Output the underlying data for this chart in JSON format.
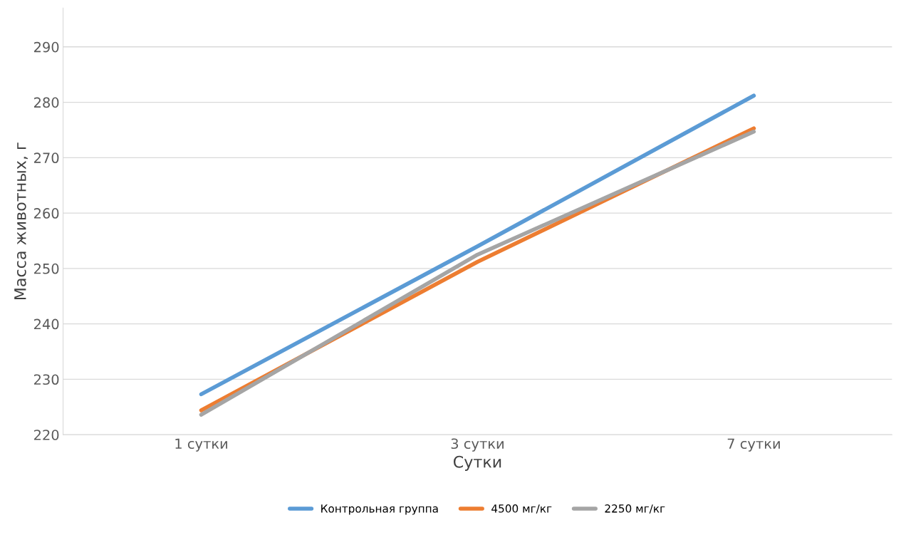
{
  "chart_data": {
    "type": "line",
    "xlabel": "Сутки",
    "ylabel": "Масса животных, г",
    "categories": [
      "1 сутки",
      "3 сутки",
      "7 сутки"
    ],
    "series": [
      {
        "name": "Контрольная группа",
        "color": "#5b9bd5",
        "values": [
          227.3,
          254.0,
          281.2
        ]
      },
      {
        "name": "4500 мг/кг",
        "color": "#ed7d31",
        "values": [
          224.4,
          251.2,
          275.3
        ]
      },
      {
        "name": "2250 мг/кг",
        "color": "#a5a5a5",
        "values": [
          223.6,
          252.5,
          274.7
        ]
      }
    ],
    "ylim": [
      220,
      297
    ],
    "yticks": [
      220,
      230,
      240,
      250,
      260,
      270,
      280,
      290
    ],
    "grid": "y",
    "legend": "bottom",
    "marker": "none",
    "line_style": "solid"
  }
}
